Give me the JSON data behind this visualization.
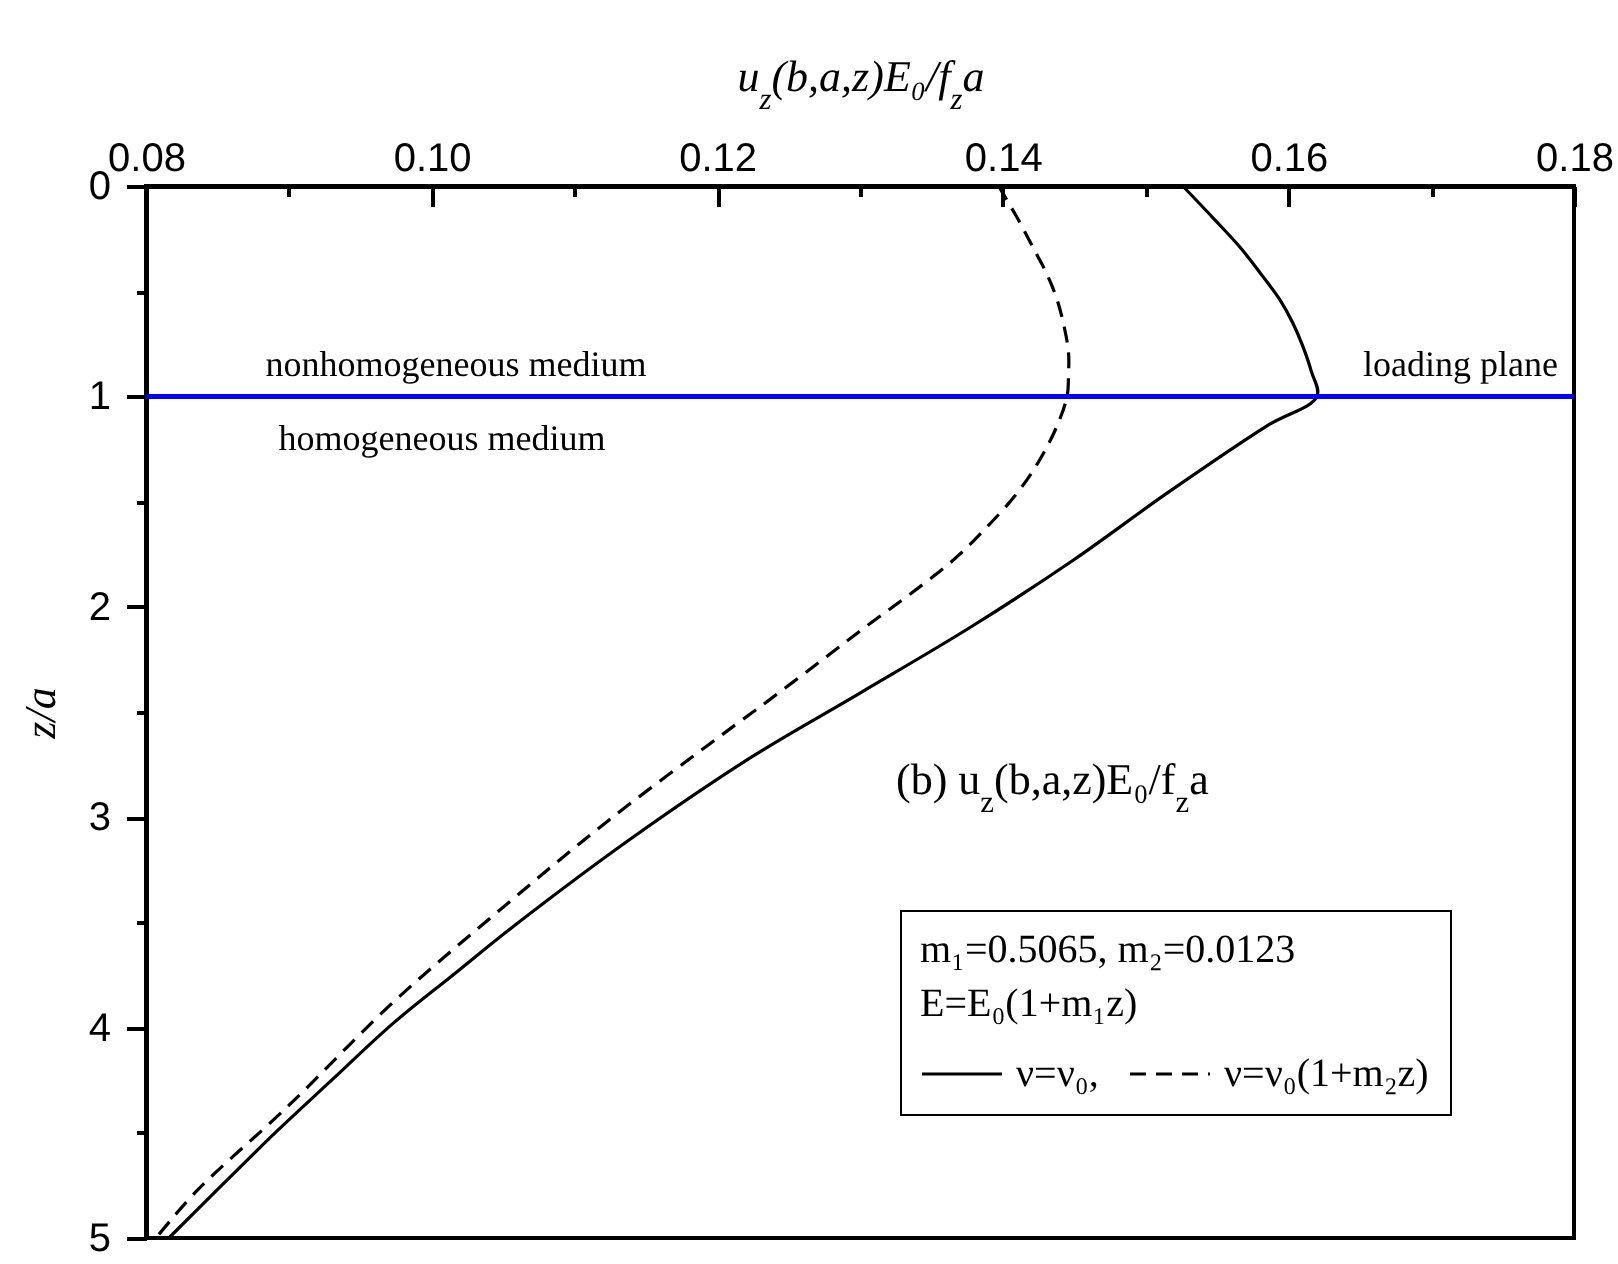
{
  "chart_data": {
    "type": "line",
    "xlabel": "u$_{z}$(b,a,z)E₀/f$_{z}$a",
    "ylabel": "z/a",
    "xlim": [
      0.08,
      0.18
    ],
    "xticks": [
      0.08,
      {
        "value": 0.09,
        "label": null
      },
      {
        "value": 0.1,
        "label": "0.10"
      },
      {
        "value": 0.11,
        "label": null
      },
      0.12,
      {
        "value": 0.13,
        "label": null
      },
      0.14,
      {
        "value": 0.15,
        "label": null
      },
      0.16,
      {
        "value": 0.17,
        "label": null
      },
      0.18
    ],
    "ylim": [
      5,
      0
    ],
    "yticks": [
      0,
      {
        "value": 0.5,
        "label": null
      },
      1,
      {
        "value": 1.5,
        "label": null
      },
      2,
      {
        "value": 2.5,
        "label": null
      },
      3,
      {
        "value": 3.5,
        "label": null
      },
      4,
      {
        "value": 4.5,
        "label": null
      },
      5
    ],
    "legend": "bottom right",
    "legend_title": "m₁=0.5065, m₂=0.0123\nE=E₀(1+m₁z)",
    "series": [
      {
        "name": "ν=ν₀,",
        "color": "#000000",
        "line_style": "solid",
        "x": [
          0.1526,
          0.1547,
          0.1566,
          0.1581,
          0.1594,
          0.1603,
          0.161,
          0.1616,
          0.162,
          0.1585,
          0.1515,
          0.1449,
          0.1379,
          0.13,
          0.1225,
          0.114,
          0.1059,
          0.1015,
          0.0973,
          0.093,
          0.0892,
          0.0853,
          0.0816
        ],
        "values": [
          0,
          0.15,
          0.29,
          0.42,
          0.54,
          0.65,
          0.76,
          0.88,
          1,
          1.14,
          1.46,
          1.78,
          2.09,
          2.41,
          2.71,
          3.1,
          3.51,
          3.75,
          3.98,
          4.25,
          4.49,
          4.75,
          5
        ]
      },
      {
        "name": "ν=ν₀(1+m₂z)",
        "color": "#000000",
        "line_style": "dashed",
        "x": [
          0.1397,
          0.141,
          0.1421,
          0.1431,
          0.1438,
          0.1443,
          0.1446,
          0.1446,
          0.1445,
          0.1438,
          0.1426,
          0.141,
          0.1389,
          0.1365,
          0.1335,
          0.1305,
          0.1274,
          0.1237,
          0.1203,
          0.1123,
          0.1048,
          0.0973,
          0.09,
          0.0835,
          0.0807
        ],
        "values": [
          0,
          0.15,
          0.29,
          0.42,
          0.54,
          0.67,
          0.79,
          0.9,
          1,
          1.14,
          1.3,
          1.46,
          1.62,
          1.78,
          1.94,
          2.09,
          2.25,
          2.44,
          2.61,
          3.02,
          3.44,
          3.88,
          4.37,
          4.78,
          5
        ]
      }
    ],
    "ref_lines": [
      {
        "axis": "y",
        "value": 1,
        "label": "loading plane",
        "color": "#0000ff"
      }
    ],
    "annotations": [
      "nonhomogeneous medium",
      "homogeneous medium",
      "(b) u$_{z}$(b,a,z)E₀/f$_{z}$a"
    ]
  }
}
